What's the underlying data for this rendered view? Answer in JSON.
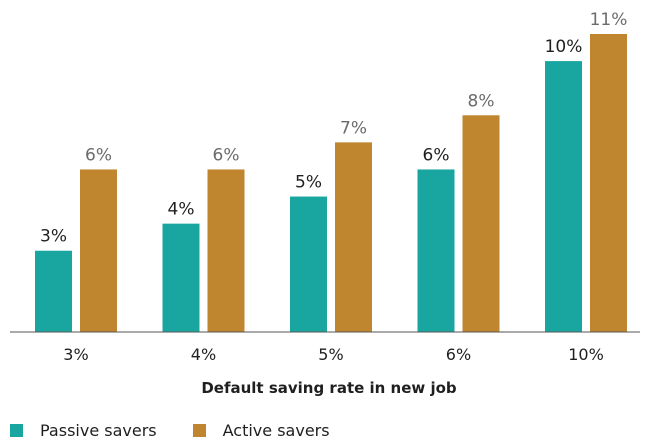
{
  "chart_data": {
    "type": "bar",
    "categories": [
      "3%",
      "4%",
      "5%",
      "6%",
      "10%"
    ],
    "series": [
      {
        "name": "Passive savers",
        "color": "#1aa6a0",
        "values": [
          3,
          4,
          5,
          6,
          10
        ],
        "labels": [
          "3%",
          "4%",
          "5%",
          "6%",
          "10%"
        ]
      },
      {
        "name": "Active savers",
        "color": "#c0862f",
        "values": [
          6,
          6,
          7,
          8,
          11
        ],
        "labels": [
          "6%",
          "6%",
          "7%",
          "8%",
          "11%"
        ]
      }
    ],
    "xlabel": "Default saving rate in new job",
    "ylabel": "",
    "ylim": [
      0,
      11
    ],
    "grid": false,
    "legend": "bottom-left"
  }
}
